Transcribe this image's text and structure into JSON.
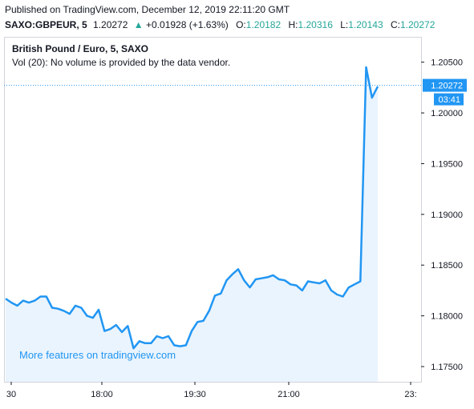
{
  "header": {
    "published": "Published on TradingView.com, December 12, 2019 22:11:20 GMT",
    "symbol": "SAXO:GBPEUR, 5",
    "last": "1.20272",
    "change_arrow": "▲",
    "change": "+0.01928 (+1.63%)",
    "open_label": "O:",
    "open": "1.20182",
    "high_label": "H:",
    "high": "1.20316",
    "low_label": "L:",
    "low": "1.20143",
    "close_label": "C:",
    "close": "1.20272"
  },
  "legend": {
    "series": "British Pound / Euro, 5, SAXO",
    "volume": "Vol (20): No volume is provided by the data vendor."
  },
  "watermark": "More features on tradingview.com",
  "colors": {
    "line": "#2196f3",
    "area": "#eaf4fe",
    "up": "#26a69a",
    "badge": "#2196f3",
    "text": "#131722"
  },
  "chart_data": {
    "type": "area",
    "ylim": [
      1.1735,
      1.2075
    ],
    "y_ticks": [
      "1.20500",
      "1.20000",
      "1.19500",
      "1.19000",
      "1.18500",
      "1.18000",
      "1.17500"
    ],
    "x_ticks": [
      "30",
      "18:00",
      "19:30",
      "21:00",
      "23:"
    ],
    "last_value": 1.20272,
    "last_value_label": "1.20272",
    "countdown": "03:41",
    "values": [
      1.1817,
      1.1813,
      1.181,
      1.1815,
      1.1813,
      1.1815,
      1.1819,
      1.1819,
      1.1808,
      1.1807,
      1.1805,
      1.1802,
      1.181,
      1.1808,
      1.18,
      1.1798,
      1.1806,
      1.1785,
      1.1787,
      1.1791,
      1.1784,
      1.179,
      1.1768,
      1.1775,
      1.1773,
      1.1773,
      1.178,
      1.1778,
      1.178,
      1.1771,
      1.177,
      1.1771,
      1.1785,
      1.1794,
      1.1795,
      1.1805,
      1.182,
      1.1822,
      1.1835,
      1.1841,
      1.1846,
      1.1835,
      1.1828,
      1.1836,
      1.1837,
      1.1838,
      1.184,
      1.1836,
      1.1835,
      1.1831,
      1.183,
      1.1825,
      1.1834,
      1.1833,
      1.1832,
      1.1835,
      1.1825,
      1.1821,
      1.1819,
      1.1828,
      1.1831,
      1.1834,
      1.2045,
      1.2015,
      1.2026
    ]
  }
}
